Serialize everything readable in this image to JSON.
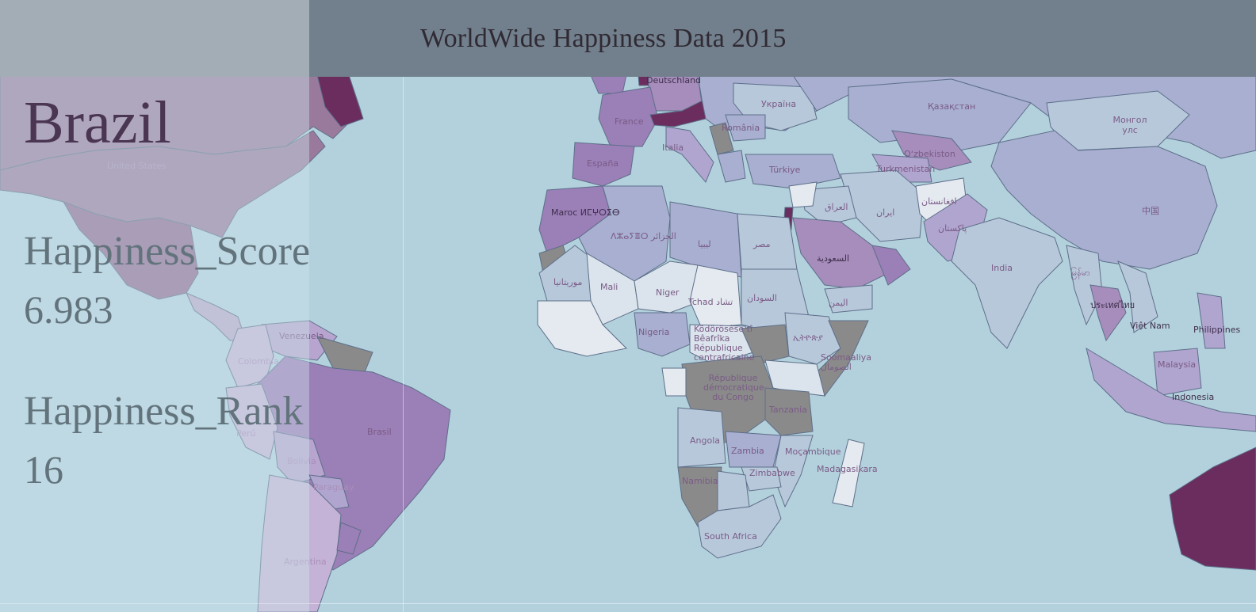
{
  "header": {
    "title": "WorldWide Happiness Data 2015"
  },
  "selection": {
    "country": "Brazil",
    "score_label": "Happiness_Score",
    "score_value": "6.983",
    "rank_label": "Happiness_Rank",
    "rank_value": "16"
  },
  "map": {
    "ocean_color": "#b3d1dc",
    "labels": {
      "united_states": "United States",
      "deutschland": "Deutschland",
      "france": "France",
      "espana": "España",
      "italia": "Italia",
      "romania": "România",
      "ukraina": "Україна",
      "kazakhstan": "Қазақстан",
      "mongolia": "Монгол улс",
      "turkiye": "Türkiye",
      "uzbekistan": "Oʻzbekiston",
      "turkmenistan": "Turkmenistan",
      "china": "中国",
      "afghanistan": "افغانستان",
      "pakistan": "پاکستان",
      "iran": "ایران",
      "iraq": "العراق",
      "saudi": "السعودية",
      "yemen": "اليمن",
      "egypt": "مصر",
      "libya": "ليبيا",
      "algeria": "ⴷⵣⴰⵢⴻⵔ الجزائر",
      "morocco": "Maroc ⵍⵎⵖⵔⵉⴱ",
      "mauritania": "موريتانيا",
      "mali": "Mali",
      "niger": "Niger",
      "chad": "Tchad تشاد",
      "sudan": "السودان",
      "nigeria": "Nigeria",
      "car": "Ködörösêse tî Bêafrîka République centrafricaine",
      "drc": "République démocratique du Congo",
      "ethiopia": "ኢትዮጵያ",
      "somalia": "Soomaaliya الصومال",
      "tanzania": "Tanzania",
      "angola": "Angola",
      "zambia": "Zambia",
      "mozambique": "Moçambique",
      "zimbabwe": "Zimbabwe",
      "namibia": "Namibia",
      "madagascar": "Madagasikara",
      "south_africa": "South Africa",
      "india": "India",
      "myanmar": "မြန်မာ",
      "thailand": "ประเทศไทย",
      "vietnam": "Việt Nam",
      "philippines": "Philippines",
      "malaysia": "Malaysia",
      "indonesia": "Indonesia",
      "venezuela": "Venezuela",
      "colombia": "Colombia",
      "peru": "Perú",
      "brasil": "Brasil",
      "bolivia": "Bolivia",
      "paraguay": "Paraguay",
      "argentina": "Argentina"
    }
  }
}
